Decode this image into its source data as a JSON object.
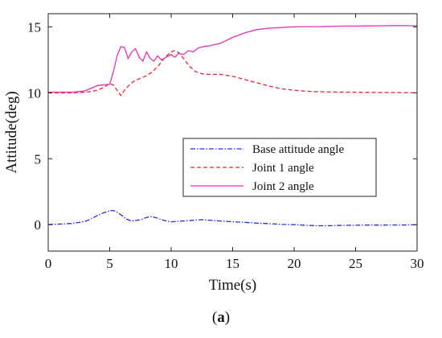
{
  "caption": {
    "open": "(",
    "letter": "a",
    "close": ")"
  },
  "chart_data": {
    "type": "line",
    "xlabel": "Time(s)",
    "ylabel": "Attitude(deg)",
    "xlim": [
      0,
      30
    ],
    "ylim": [
      -2,
      16
    ],
    "xticks": [
      0,
      5,
      10,
      15,
      20,
      25,
      30
    ],
    "yticks": [
      0,
      5,
      10,
      15
    ],
    "grid": false,
    "legend_position": "center-right",
    "series": [
      {
        "name": "Base attitude angle",
        "color": "#2b2bd6",
        "style": "dashdot",
        "x": [
          0,
          1,
          2,
          3,
          3.5,
          4,
          4.5,
          5,
          5.3,
          5.6,
          6,
          6.3,
          6.7,
          7,
          7.5,
          8,
          8.3,
          8.6,
          9,
          9.5,
          10,
          11,
          12,
          12.5,
          13,
          14,
          15,
          16,
          17,
          18,
          19,
          20,
          21,
          22,
          23,
          24,
          25,
          26,
          27,
          28,
          29,
          30
        ],
        "y": [
          0.02,
          0.05,
          0.1,
          0.25,
          0.45,
          0.7,
          0.9,
          1.05,
          1.08,
          0.95,
          0.7,
          0.45,
          0.3,
          0.3,
          0.38,
          0.55,
          0.62,
          0.58,
          0.45,
          0.3,
          0.22,
          0.28,
          0.35,
          0.38,
          0.35,
          0.28,
          0.22,
          0.18,
          0.12,
          0.08,
          0.02,
          0.0,
          -0.05,
          -0.08,
          -0.07,
          -0.05,
          -0.04,
          -0.03,
          -0.03,
          -0.02,
          -0.02,
          0.0
        ]
      },
      {
        "name": "Joint 1 angle",
        "color": "#e8262f",
        "style": "dashed",
        "x": [
          0,
          1,
          2,
          3,
          3.5,
          4,
          4.5,
          5,
          5.3,
          5.6,
          5.9,
          6.2,
          6.6,
          7,
          7.5,
          8,
          8.5,
          9,
          9.5,
          10,
          10.3,
          10.7,
          11,
          11.5,
          12,
          12.5,
          13,
          14,
          15,
          16,
          17,
          18,
          19,
          20,
          21,
          22,
          24,
          26,
          28,
          30
        ],
        "y": [
          10.0,
          10.0,
          10.0,
          10.05,
          10.1,
          10.2,
          10.4,
          10.7,
          10.6,
          10.2,
          9.8,
          10.2,
          10.6,
          10.9,
          11.1,
          11.3,
          11.6,
          12.1,
          12.7,
          13.1,
          13.2,
          13.0,
          12.6,
          12.0,
          11.6,
          11.45,
          11.4,
          11.4,
          11.25,
          11.0,
          10.75,
          10.5,
          10.3,
          10.2,
          10.12,
          10.08,
          10.05,
          10.03,
          10.02,
          10.0
        ]
      },
      {
        "name": "Joint 2 angle",
        "color": "#e830b4",
        "style": "solid",
        "x": [
          0,
          1,
          2,
          3,
          3.5,
          4,
          4.5,
          5,
          5.3,
          5.6,
          5.9,
          6.2,
          6.5,
          6.8,
          7.1,
          7.4,
          7.7,
          8,
          8.3,
          8.6,
          8.9,
          9.2,
          9.6,
          10,
          10.3,
          10.6,
          11,
          11.4,
          11.8,
          12.2,
          12.6,
          13,
          14,
          15,
          16,
          17,
          18,
          19,
          20,
          21,
          22,
          23,
          24,
          25,
          26,
          27,
          28,
          29,
          30
        ],
        "y": [
          10.05,
          10.05,
          10.05,
          10.15,
          10.35,
          10.55,
          10.6,
          10.65,
          11.6,
          12.8,
          13.5,
          13.45,
          12.6,
          13.1,
          13.35,
          12.7,
          12.4,
          13.1,
          12.6,
          12.4,
          12.8,
          12.5,
          12.7,
          12.9,
          12.7,
          13.0,
          12.9,
          13.2,
          13.1,
          13.4,
          13.5,
          13.55,
          13.75,
          14.2,
          14.55,
          14.8,
          14.9,
          14.95,
          15.0,
          15.02,
          15.02,
          15.04,
          15.06,
          15.06,
          15.07,
          15.08,
          15.1,
          15.1,
          15.08
        ]
      }
    ]
  }
}
